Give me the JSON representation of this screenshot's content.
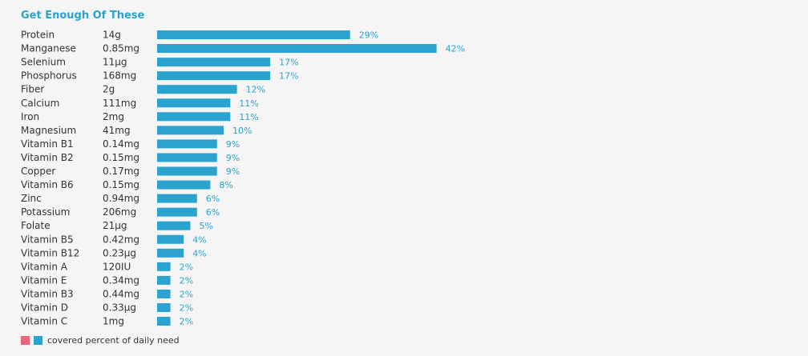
{
  "chart_data": {
    "type": "bar",
    "orientation": "horizontal",
    "title": "Get Enough Of These",
    "categories": [
      "Protein",
      "Manganese",
      "Selenium",
      "Phosphorus",
      "Fiber",
      "Calcium",
      "Iron",
      "Magnesium",
      "Vitamin B1",
      "Vitamin B2",
      "Copper",
      "Vitamin B6",
      "Zinc",
      "Potassium",
      "Folate",
      "Vitamin B5",
      "Vitamin B12",
      "Vitamin A",
      "Vitamin E",
      "Vitamin B3",
      "Vitamin D",
      "Vitamin C"
    ],
    "amounts": [
      "14g",
      "0.85mg",
      "11µg",
      "168mg",
      "2g",
      "111mg",
      "2mg",
      "41mg",
      "0.14mg",
      "0.15mg",
      "0.17mg",
      "0.15mg",
      "0.94mg",
      "206mg",
      "21µg",
      "0.42mg",
      "0.23µg",
      "120IU",
      "0.34mg",
      "0.44mg",
      "0.33µg",
      "1mg"
    ],
    "values": [
      29,
      42,
      17,
      17,
      12,
      11,
      11,
      10,
      9,
      9,
      9,
      8,
      6,
      6,
      5,
      4,
      4,
      2,
      2,
      2,
      2,
      2
    ],
    "value_labels": [
      "29%",
      "42%",
      "17%",
      "17%",
      "12%",
      "11%",
      "11%",
      "10%",
      "9%",
      "9%",
      "9%",
      "8%",
      "6%",
      "6%",
      "5%",
      "4%",
      "4%",
      "2%",
      "2%",
      "2%",
      "2%",
      "2%"
    ],
    "legend": {
      "placement": "bottom-left",
      "label": "covered percent of daily need",
      "swatch_colors": [
        "#e8677f",
        "#2aa3cf"
      ]
    },
    "bar_color": "#2aa3cf"
  }
}
